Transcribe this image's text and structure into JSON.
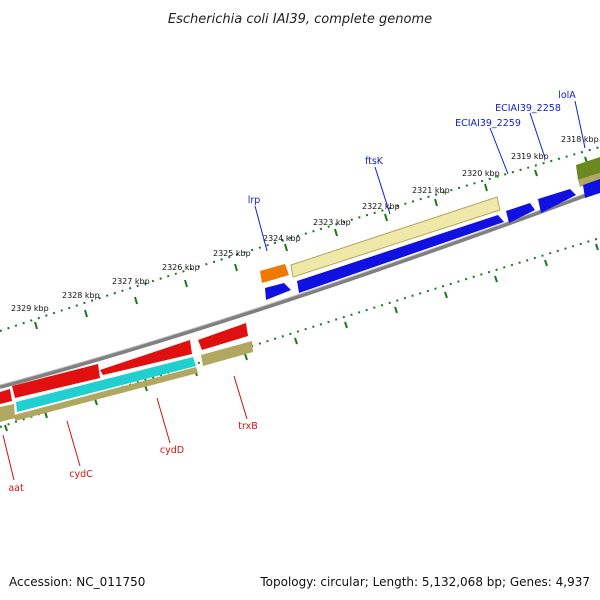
{
  "title": "Escherichia coli IAI39, complete genome",
  "footer": {
    "accession": "Accession: NC_011750",
    "summary": "Topology: circular; Length: 5,132,068 bp; Genes: 4,937"
  },
  "ticks": [
    "2318 kbp",
    "2319 kbp",
    "2320 kbp",
    "2321 kbp",
    "2322 kbp",
    "2323 kbp",
    "2324 kbp",
    "2325 kbp",
    "2326 kbp",
    "2327 kbp",
    "2328 kbp",
    "2329 kbp"
  ],
  "top_genes": [
    "lolA",
    "ECIAI39_2258",
    "ECIAI39_2259",
    "ftsK",
    "lrp"
  ],
  "bottom_genes": [
    "trxB",
    "cydD",
    "cydC",
    "aat"
  ],
  "colors": {
    "forward_cds": "#1010e0",
    "reverse_cds": "#e01010",
    "tRNA": "#20d0d0",
    "pale_gene": "#f0e8a8",
    "olive_gene": "#b0a860",
    "orange_gene": "#f07800",
    "green_gene": "#6a8a20",
    "tick": "#1a7a1a",
    "backbone": "#808080"
  }
}
